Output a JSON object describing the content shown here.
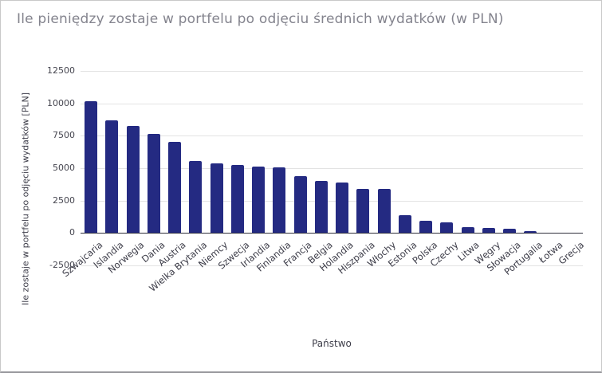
{
  "chart_data": {
    "type": "bar",
    "title": "Ile pieniędzy zostaje w portfelu po odjęciu średnich wydatków (w PLN)",
    "xlabel": "Państwo",
    "ylabel": "Ile zostaje w portfelu po odjęciu wydatków [PLN]",
    "categories": [
      "Szwajcaria",
      "Islandia",
      "Norwegia",
      "Dania",
      "Austria",
      "Wielka Brytania",
      "Niemcy",
      "Szwecja",
      "Irlandia",
      "Finlandia",
      "Francja",
      "Belgia",
      "Holandia",
      "Hiszpania",
      "Włochy",
      "Estonia",
      "Polska",
      "Czechy",
      "Litwa",
      "Węgry",
      "Słowacja",
      "Portugalia",
      "Łotwa",
      "Grecja"
    ],
    "values": [
      10150,
      8700,
      8250,
      7650,
      7050,
      5550,
      5400,
      5250,
      5100,
      5050,
      4400,
      4050,
      3900,
      3400,
      3380,
      1380,
      950,
      820,
      450,
      400,
      320,
      160,
      40,
      0
    ],
    "yticks": [
      12500,
      10000,
      7500,
      5000,
      2500,
      0,
      -2500
    ],
    "ylim": [
      -2500,
      12500
    ],
    "grid": true,
    "legend": "none",
    "bar_color": "#242a82"
  },
  "colors": {
    "title_text": "#84848e",
    "axis_text": "#3d3d49",
    "tick_text": "#45454f",
    "gridline": "#e3e3e3",
    "zero_line": "#2f2f3c",
    "bar": "#242a82",
    "frame_border": "#c9c9c9"
  }
}
